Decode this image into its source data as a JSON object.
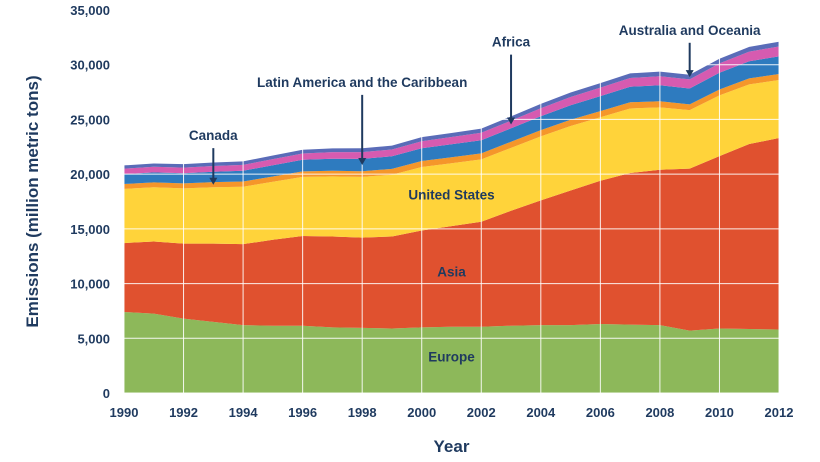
{
  "chart_data": {
    "type": "area",
    "stacked": true,
    "title": "",
    "xlabel": "Year",
    "ylabel": "Emissions (million metric tons)",
    "x": [
      1990,
      1991,
      1992,
      1993,
      1994,
      1995,
      1996,
      1997,
      1998,
      1999,
      2000,
      2001,
      2002,
      2003,
      2004,
      2005,
      2006,
      2007,
      2008,
      2009,
      2010,
      2011,
      2012
    ],
    "xlim": [
      1990,
      2012
    ],
    "ylim": [
      0,
      35000
    ],
    "x_ticks": [
      "1990",
      "1992",
      "1994",
      "1996",
      "1998",
      "2000",
      "2002",
      "2004",
      "2006",
      "2008",
      "2010",
      "2012"
    ],
    "y_ticks": [
      "0",
      "5,000",
      "10,000",
      "15,000",
      "20,000",
      "25,000",
      "30,000",
      "35,000"
    ],
    "grid": true,
    "legend": "none",
    "series": [
      {
        "name": "Europe",
        "color": "#8db85a",
        "values": [
          7400,
          7250,
          6800,
          6500,
          6200,
          6150,
          6150,
          6000,
          5950,
          5900,
          6000,
          6050,
          6050,
          6150,
          6200,
          6200,
          6300,
          6250,
          6200,
          5700,
          5900,
          5850,
          5800
        ]
      },
      {
        "name": "Asia",
        "color": "#e0512f",
        "values": [
          6300,
          6600,
          6850,
          7150,
          7400,
          7850,
          8200,
          8300,
          8250,
          8400,
          8850,
          9200,
          9600,
          10500,
          11400,
          12300,
          13100,
          13850,
          14200,
          14800,
          15750,
          16900,
          17500
        ]
      },
      {
        "name": "United States",
        "color": "#ffd33a",
        "values": [
          4950,
          4950,
          5050,
          5150,
          5250,
          5300,
          5400,
          5500,
          5550,
          5650,
          5800,
          5750,
          5700,
          5750,
          5850,
          5900,
          5800,
          5900,
          5700,
          5350,
          5550,
          5450,
          5300
        ]
      },
      {
        "name": "Canada",
        "color": "#f5962a",
        "values": [
          450,
          450,
          460,
          470,
          480,
          490,
          500,
          510,
          520,
          530,
          550,
          540,
          550,
          560,
          570,
          570,
          560,
          570,
          560,
          530,
          540,
          550,
          550
        ]
      },
      {
        "name": "Latin America and the Caribbean",
        "color": "#2e7bbf",
        "values": [
          900,
          910,
          920,
          950,
          980,
          1020,
          1060,
          1100,
          1130,
          1150,
          1170,
          1190,
          1200,
          1230,
          1270,
          1320,
          1370,
          1420,
          1460,
          1450,
          1520,
          1570,
          1610
        ]
      },
      {
        "name": "Africa",
        "color": "#d65bb0",
        "values": [
          500,
          510,
          520,
          530,
          540,
          560,
          580,
          600,
          610,
          620,
          640,
          660,
          680,
          700,
          730,
          760,
          780,
          800,
          820,
          830,
          860,
          880,
          900
        ]
      },
      {
        "name": "Australia and Oceania",
        "color": "#5a6cb8",
        "values": [
          300,
          305,
          310,
          315,
          320,
          330,
          340,
          350,
          355,
          360,
          370,
          375,
          380,
          390,
          400,
          405,
          410,
          420,
          425,
          420,
          430,
          435,
          440
        ]
      }
    ],
    "annotations": [
      {
        "text": "Canada",
        "type": "arrow",
        "series": "Canada",
        "x": 1993
      },
      {
        "text": "Latin America and the Caribbean",
        "type": "arrow",
        "series": "Latin America and the Caribbean",
        "x": 1998
      },
      {
        "text": "Africa",
        "type": "arrow",
        "series": "Africa",
        "x": 2003
      },
      {
        "text": "Australia and Oceania",
        "type": "arrow",
        "series": "Australia and Oceania",
        "x": 2009
      },
      {
        "text": "United States",
        "type": "inline",
        "series": "United States",
        "x": 2001
      },
      {
        "text": "Asia",
        "type": "inline",
        "series": "Asia",
        "x": 2001
      },
      {
        "text": "Europe",
        "type": "inline",
        "series": "Europe",
        "x": 2001
      }
    ]
  }
}
